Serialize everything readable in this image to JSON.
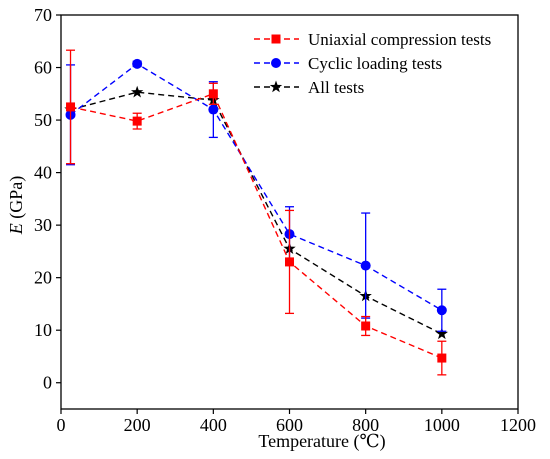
{
  "chart_data": {
    "type": "line",
    "xlabel": "Temperature (℃)",
    "ylabel_italic": "E",
    "ylabel_rest": " (GPa)",
    "xlim": [
      0,
      1200
    ],
    "ylim": [
      -5,
      70
    ],
    "xticks": [
      0,
      200,
      400,
      600,
      800,
      1000,
      1200
    ],
    "yticks": [
      0,
      10,
      20,
      30,
      40,
      50,
      60,
      70
    ],
    "grid": false,
    "legend_position": "top-right",
    "series": [
      {
        "name": "Uniaxial compression tests",
        "color": "#ff0000",
        "marker": "square",
        "x": [
          25,
          200,
          400,
          600,
          800,
          1000
        ],
        "y": [
          52.5,
          49.8,
          55.0,
          23.0,
          10.8,
          4.7
        ],
        "error": [
          10.8,
          1.5,
          2.0,
          9.8,
          1.8,
          3.2
        ]
      },
      {
        "name": "Cyclic loading tests",
        "color": "#0000ff",
        "marker": "circle",
        "x": [
          25,
          200,
          400,
          600,
          800,
          1000
        ],
        "y": [
          51.0,
          60.7,
          52.0,
          28.3,
          22.3,
          13.8
        ],
        "error": [
          9.5,
          0.5,
          5.3,
          5.2,
          10.0,
          4.0
        ]
      },
      {
        "name": "All tests",
        "color": "#000000",
        "marker": "star",
        "x": [
          25,
          200,
          400,
          600,
          800,
          1000
        ],
        "y": [
          52.0,
          55.3,
          53.8,
          25.5,
          16.5,
          9.3
        ],
        "error": null
      }
    ]
  }
}
